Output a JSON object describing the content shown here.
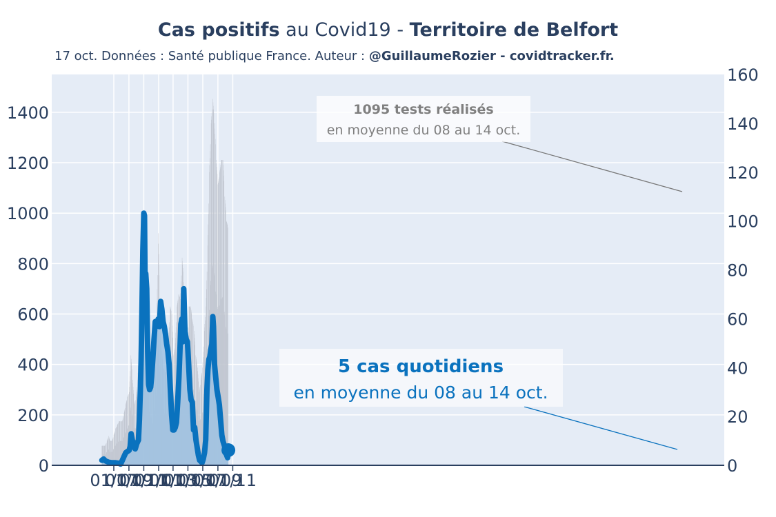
{
  "title": {
    "bold_1": "Cas positifs",
    "normal": " au Covid19 - ",
    "bold_2": "Territoire de Belfort"
  },
  "subtitle": {
    "normal": "17 oct. Données : Santé publique France. Auteur : ",
    "bold": "@GuillaumeRozier - covidtracker.fr."
  },
  "annotations": {
    "tests_value": "1095 tests réalisés",
    "tests_period": "en moyenne du 08 au 14 oct.",
    "cases_value": "5 cas quotidiens",
    "cases_period": "en moyenne du 08 au 14 oct."
  },
  "colors": {
    "plot_bg": "#e5ecf6",
    "cases_line": "#0a72be",
    "cases_fill": "#9fc2e2",
    "tests_bars": "#bfc4ce",
    "cases_annotation_text": "#0a72be",
    "tests_annotation_text": "#7f7f7f"
  },
  "chart_data": {
    "type": "line",
    "x_ticks": [
      "01/07",
      "01/09",
      "01/11",
      "01/01",
      "01/03",
      "01/05",
      "01/07",
      "01/09",
      "01/11"
    ],
    "ylim_left": [
      0,
      1550
    ],
    "yticks_left": [
      0,
      200,
      400,
      600,
      800,
      1000,
      1200,
      1400
    ],
    "ylim_right": [
      0,
      160
    ],
    "yticks_right": [
      0,
      20,
      40,
      60,
      80,
      100,
      120,
      140,
      160
    ],
    "legend": "none",
    "grid": true,
    "series": [
      {
        "axis": "right",
        "style": "bars",
        "x": [
          "2020-05-13",
          "2020-05-27",
          "2020-06-10",
          "2020-06-15",
          "2020-06-24",
          "2020-07-08",
          "2020-07-22",
          "2020-08-05",
          "2020-08-19",
          "2020-08-26",
          "2020-09-02",
          "2020-09-09",
          "2020-09-16",
          "2020-09-23",
          "2020-09-30",
          "2020-10-07",
          "2020-10-14",
          "2020-10-21",
          "2020-10-28",
          "2020-11-04",
          "2020-11-11",
          "2020-11-18",
          "2020-11-25",
          "2020-12-02",
          "2020-12-09",
          "2020-12-16",
          "2020-12-23",
          "2020-12-30",
          "2021-01-06",
          "2021-01-13",
          "2021-01-20",
          "2021-01-27",
          "2021-02-03",
          "2021-02-10",
          "2021-02-17",
          "2021-02-24",
          "2021-03-03",
          "2021-03-10",
          "2021-03-17",
          "2021-03-24",
          "2021-03-31",
          "2021-04-07",
          "2021-04-14",
          "2021-04-21",
          "2021-04-28",
          "2021-05-05",
          "2021-05-12",
          "2021-05-19",
          "2021-05-26",
          "2021-06-02",
          "2021-06-09",
          "2021-06-16",
          "2021-06-23",
          "2021-06-30",
          "2021-07-07",
          "2021-07-14",
          "2021-07-21",
          "2021-07-28",
          "2021-08-04",
          "2021-08-11",
          "2021-08-18",
          "2021-08-25",
          "2021-09-01",
          "2021-09-08",
          "2021-09-15",
          "2021-09-22",
          "2021-09-29",
          "2021-10-06",
          "2021-10-14"
        ],
        "y": [
          8,
          8,
          12,
          10,
          10,
          15,
          18,
          18,
          25,
          28,
          30,
          45,
          35,
          25,
          28,
          35,
          55,
          75,
          75,
          72,
          65,
          50,
          38,
          35,
          30,
          45,
          55,
          95,
          65,
          48,
          40,
          38,
          38,
          50,
          65,
          62,
          45,
          50,
          65,
          70,
          68,
          85,
          75,
          55,
          45,
          65,
          65,
          60,
          55,
          45,
          40,
          30,
          35,
          40,
          55,
          65,
          90,
          120,
          140,
          150,
          140,
          125,
          115,
          120,
          125,
          125,
          110,
          100,
          97
        ]
      },
      {
        "axis": "left",
        "style": "line-with-area",
        "x": [
          "2020-05-13",
          "2020-05-20",
          "2020-05-27",
          "2020-06-10",
          "2020-06-24",
          "2020-07-08",
          "2020-07-22",
          "2020-07-29",
          "2020-08-05",
          "2020-08-12",
          "2020-08-19",
          "2020-08-26",
          "2020-09-02",
          "2020-09-06",
          "2020-09-10",
          "2020-09-14",
          "2020-09-20",
          "2020-09-27",
          "2020-10-03",
          "2020-10-10",
          "2020-10-14",
          "2020-10-18",
          "2020-10-21",
          "2020-10-25",
          "2020-10-28",
          "2020-11-01",
          "2020-11-04",
          "2020-11-06",
          "2020-11-09",
          "2020-11-13",
          "2020-11-17",
          "2020-11-21",
          "2020-11-25",
          "2020-11-29",
          "2020-12-03",
          "2020-12-08",
          "2020-12-13",
          "2020-12-18",
          "2020-12-25",
          "2020-12-30",
          "2021-01-04",
          "2021-01-09",
          "2021-01-14",
          "2021-01-19",
          "2021-01-24",
          "2021-01-29",
          "2021-02-03",
          "2021-02-08",
          "2021-02-13",
          "2021-02-18",
          "2021-02-23",
          "2021-02-28",
          "2021-03-05",
          "2021-03-10",
          "2021-03-15",
          "2021-03-20",
          "2021-03-25",
          "2021-03-29",
          "2021-04-02",
          "2021-04-06",
          "2021-04-10",
          "2021-04-14",
          "2021-04-19",
          "2021-04-24",
          "2021-04-29",
          "2021-05-04",
          "2021-05-09",
          "2021-05-14",
          "2021-05-19",
          "2021-05-24",
          "2021-05-29",
          "2021-06-03",
          "2021-06-08",
          "2021-06-13",
          "2021-06-18",
          "2021-06-23",
          "2021-06-28",
          "2021-07-03",
          "2021-07-08",
          "2021-07-13",
          "2021-07-18",
          "2021-07-22",
          "2021-07-26",
          "2021-07-30",
          "2021-08-03",
          "2021-08-07",
          "2021-08-11",
          "2021-08-14",
          "2021-08-18",
          "2021-08-23",
          "2021-08-28",
          "2021-09-02",
          "2021-09-07",
          "2021-09-12",
          "2021-09-17",
          "2021-09-22",
          "2021-09-27",
          "2021-10-02",
          "2021-10-07",
          "2021-10-11",
          "2021-10-14"
        ],
        "y": [
          20,
          25,
          18,
          12,
          10,
          10,
          8,
          5,
          20,
          35,
          50,
          55,
          60,
          75,
          125,
          105,
          75,
          65,
          85,
          100,
          180,
          300,
          420,
          650,
          850,
          1000,
          990,
          750,
          760,
          700,
          450,
          320,
          300,
          310,
          350,
          420,
          500,
          570,
          560,
          580,
          550,
          650,
          620,
          570,
          550,
          520,
          480,
          450,
          400,
          300,
          200,
          140,
          140,
          150,
          170,
          250,
          350,
          450,
          560,
          580,
          490,
          700,
          530,
          500,
          490,
          400,
          300,
          260,
          250,
          140,
          150,
          100,
          70,
          40,
          20,
          15,
          10,
          25,
          50,
          100,
          300,
          380,
          420,
          430,
          460,
          480,
          590,
          550,
          400,
          350,
          300,
          270,
          240,
          180,
          120,
          95,
          80,
          60,
          40,
          30,
          60
        ]
      }
    ]
  }
}
